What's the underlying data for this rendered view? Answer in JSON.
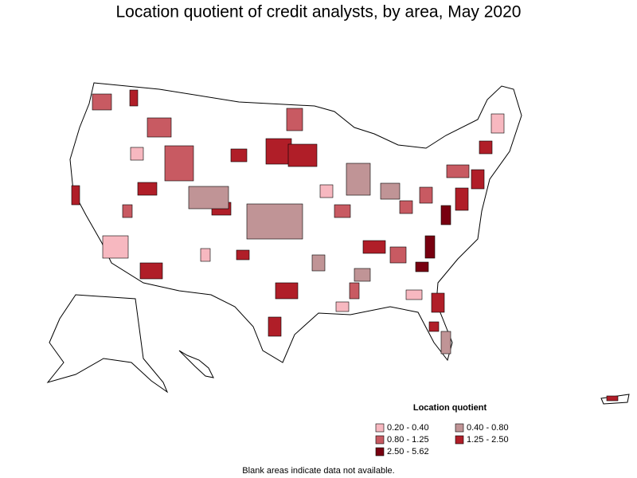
{
  "title": "Location quotient of credit analysts, by area, May 2020",
  "legend": {
    "title": "Location quotient",
    "items": [
      {
        "label": "0.20 - 0.40",
        "color": "#f7b8c0"
      },
      {
        "label": "0.40 - 0.80",
        "color": "#c09496"
      },
      {
        "label": "0.80 - 1.25",
        "color": "#c85a62"
      },
      {
        "label": "1.25 - 2.50",
        "color": "#b01e28"
      },
      {
        "label": "2.50 - 5.62",
        "color": "#780010"
      }
    ]
  },
  "note": "Blank areas indicate data not available."
}
